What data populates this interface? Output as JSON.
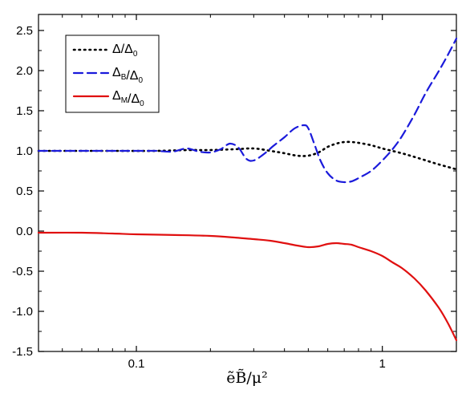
{
  "chart_data": {
    "type": "line",
    "x_scale": "log",
    "xlim": [
      0.04,
      2.0
    ],
    "ylim": [
      -1.5,
      2.7
    ],
    "x_ticks": [
      {
        "value": 0.1,
        "label": "0.1"
      },
      {
        "value": 1,
        "label": "1"
      }
    ],
    "y_ticks": [
      {
        "value": 2.5,
        "label": "2.5"
      },
      {
        "value": 2.0,
        "label": "2.0"
      },
      {
        "value": 1.5,
        "label": "1.5"
      },
      {
        "value": 1.0,
        "label": "1.0"
      },
      {
        "value": 0.5,
        "label": "0.5"
      },
      {
        "value": 0.0,
        "label": "0.0"
      },
      {
        "value": -0.5,
        "label": "-0.5"
      },
      {
        "value": -1.0,
        "label": "-1.0"
      },
      {
        "value": -1.5,
        "label": "-1.5"
      }
    ],
    "xlabel": "ẽB̃/μ²",
    "ylabel": "",
    "legend_position": "top-left",
    "series": [
      {
        "name": "Δ/Δ0",
        "legend_main": "Δ/Δ",
        "legend_sub": "0",
        "color": "#000000",
        "style": "dotted",
        "x": [
          0.04,
          0.08,
          0.12,
          0.16,
          0.2,
          0.25,
          0.3,
          0.35,
          0.4,
          0.45,
          0.5,
          0.55,
          0.6,
          0.65,
          0.7,
          0.75,
          0.8,
          0.9,
          1.0,
          1.2,
          1.4,
          1.7,
          2.0
        ],
        "y": [
          1.0,
          1.0,
          1.0,
          1.01,
          1.01,
          1.02,
          1.03,
          1.0,
          0.97,
          0.94,
          0.94,
          0.98,
          1.05,
          1.09,
          1.11,
          1.11,
          1.1,
          1.07,
          1.03,
          0.97,
          0.91,
          0.83,
          0.77
        ]
      },
      {
        "name": "ΔB/Δ0",
        "legend_main": "Δ",
        "legend_sub1": "B",
        "legend_mid": "/Δ",
        "legend_sub2": "0",
        "color": "#1a1adb",
        "style": "dashed",
        "x": [
          0.04,
          0.1,
          0.12,
          0.14,
          0.16,
          0.18,
          0.2,
          0.22,
          0.24,
          0.26,
          0.28,
          0.3,
          0.33,
          0.36,
          0.4,
          0.44,
          0.48,
          0.5,
          0.53,
          0.56,
          0.6,
          0.65,
          0.7,
          0.75,
          0.8,
          0.9,
          1.0,
          1.1,
          1.2,
          1.35,
          1.5,
          1.7,
          1.85,
          2.0
        ],
        "y": [
          1.0,
          1.0,
          1.0,
          0.99,
          1.03,
          0.99,
          0.98,
          1.02,
          1.09,
          1.04,
          0.9,
          0.88,
          0.96,
          1.06,
          1.17,
          1.28,
          1.32,
          1.28,
          1.08,
          0.88,
          0.72,
          0.63,
          0.61,
          0.62,
          0.66,
          0.75,
          0.88,
          1.02,
          1.18,
          1.45,
          1.72,
          2.0,
          2.2,
          2.4
        ]
      },
      {
        "name": "ΔM/Δ0",
        "legend_main": "Δ",
        "legend_sub1": "M",
        "legend_mid": "/Δ",
        "legend_sub2": "0",
        "color": "#e01010",
        "style": "solid",
        "x": [
          0.04,
          0.06,
          0.08,
          0.1,
          0.15,
          0.2,
          0.25,
          0.3,
          0.35,
          0.4,
          0.45,
          0.5,
          0.55,
          0.6,
          0.65,
          0.7,
          0.75,
          0.8,
          0.9,
          1.0,
          1.1,
          1.2,
          1.35,
          1.5,
          1.7,
          1.85,
          2.0
        ],
        "y": [
          -0.02,
          -0.02,
          -0.03,
          -0.04,
          -0.05,
          -0.06,
          -0.08,
          -0.1,
          -0.12,
          -0.15,
          -0.18,
          -0.2,
          -0.19,
          -0.16,
          -0.15,
          -0.16,
          -0.17,
          -0.2,
          -0.25,
          -0.31,
          -0.39,
          -0.46,
          -0.59,
          -0.74,
          -0.96,
          -1.15,
          -1.36
        ]
      }
    ]
  }
}
